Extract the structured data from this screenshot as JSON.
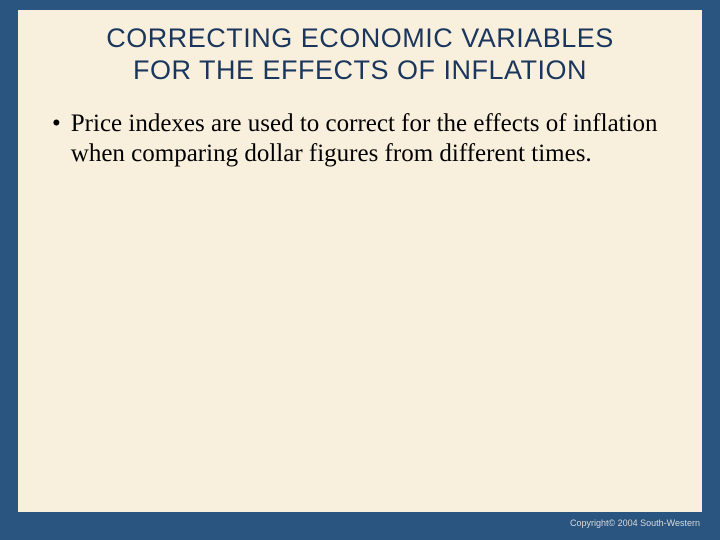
{
  "slide": {
    "background_outer": "#2a5580",
    "background_inner": "#f8efdc",
    "title": {
      "line1": "CORRECTING ECONOMIC VARIABLES",
      "line2": "FOR THE EFFECTS OF INFLATION",
      "color": "#1a365d",
      "font_family": "Arial",
      "font_size": 27
    },
    "bullets": [
      {
        "marker": "•",
        "text": "Price indexes are used to correct for the effects of inflation when comparing dollar figures from different times."
      }
    ],
    "body_font_family": "Times New Roman",
    "body_font_size": 25,
    "body_color": "#000000"
  },
  "copyright": {
    "text": "Copyright© 2004  South-Western",
    "color": "#d8d8d8",
    "font_size": 9
  }
}
